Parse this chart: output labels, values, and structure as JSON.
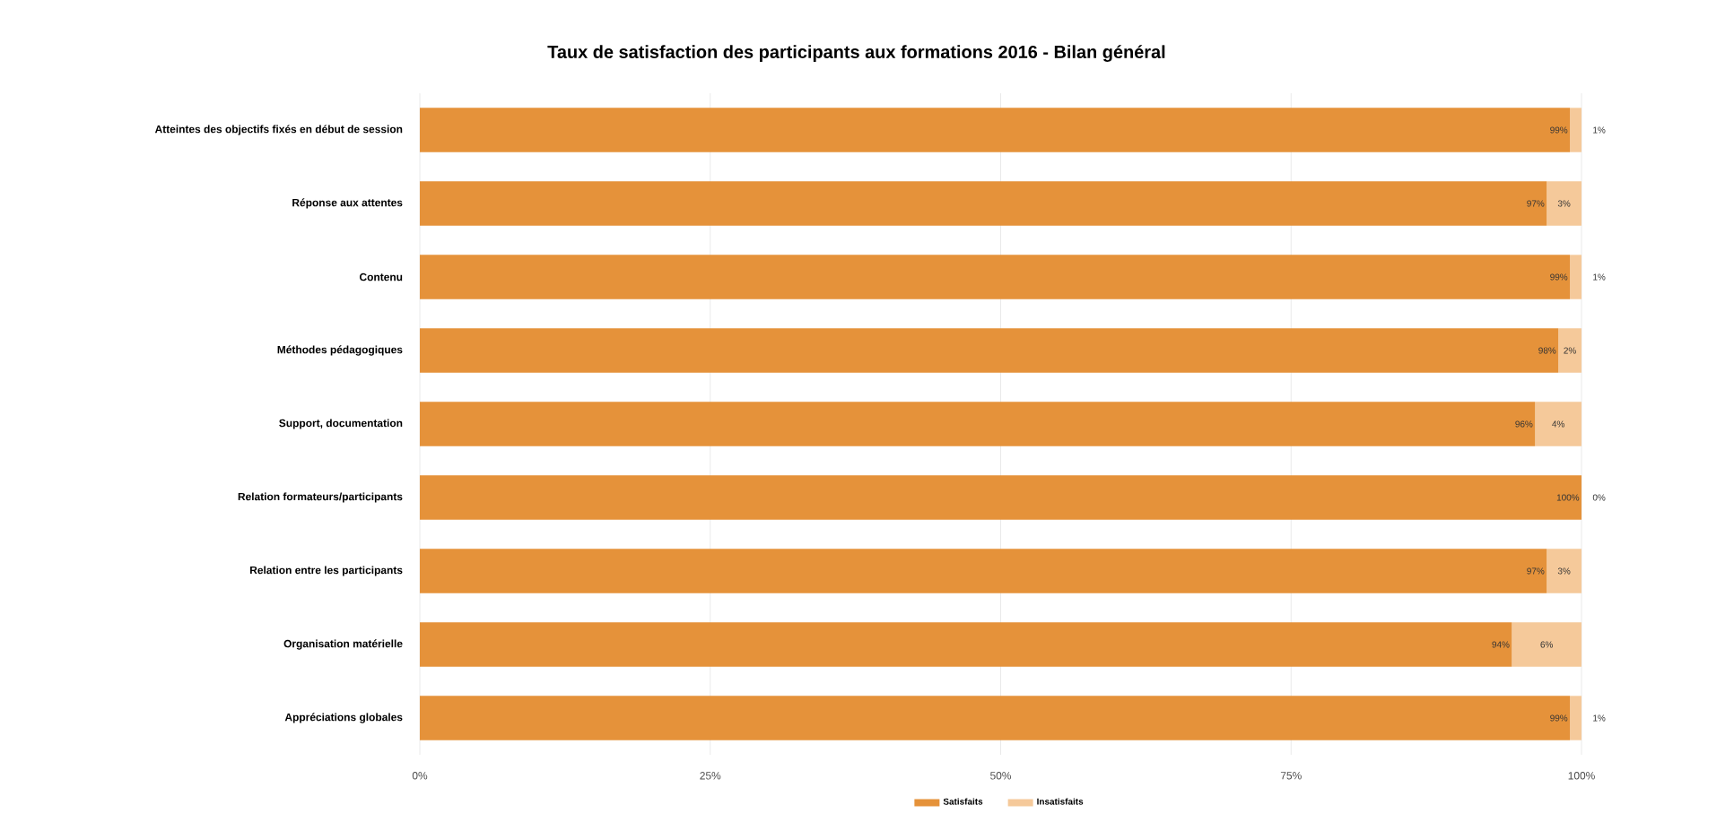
{
  "chart_data": {
    "type": "bar",
    "title": "Taux de satisfaction des participants aux formations 2016 - Bilan général",
    "categories": [
      "Atteintes des objectifs fixés en début de session",
      "Réponse aux attentes",
      "Contenu",
      "Méthodes pédagogiques",
      "Support, documentation",
      "Relation formateurs/participants",
      "Relation entre les participants",
      "Organisation matérielle",
      "Appréciations globales"
    ],
    "orientation": "horizontal",
    "stacked": true,
    "series": [
      {
        "name": "Satisfaits",
        "color": "#e5923a",
        "values": [
          99,
          97,
          99,
          98,
          96,
          100,
          97,
          94,
          99
        ],
        "value_labels": [
          "99%",
          "97%",
          "99%",
          "98%",
          "96%",
          "100%",
          "97%",
          "94%",
          "99%"
        ]
      },
      {
        "name": "Insatisfaits",
        "color": "#f5c99a",
        "values": [
          1,
          3,
          1,
          2,
          4,
          0,
          3,
          6,
          1
        ],
        "value_labels": [
          "1%",
          "3%",
          "1%",
          "2%",
          "4%",
          "0%",
          "3%",
          "6%",
          "1%"
        ]
      }
    ],
    "xlim": [
      0,
      100
    ],
    "xticks": [
      {
        "value": 0,
        "label": "0%"
      },
      {
        "value": 25,
        "label": "25%"
      },
      {
        "value": 50,
        "label": "50%"
      },
      {
        "value": 75,
        "label": "75%"
      },
      {
        "value": 100,
        "label": "100%"
      }
    ],
    "grid": "x",
    "legend": "bottom"
  }
}
